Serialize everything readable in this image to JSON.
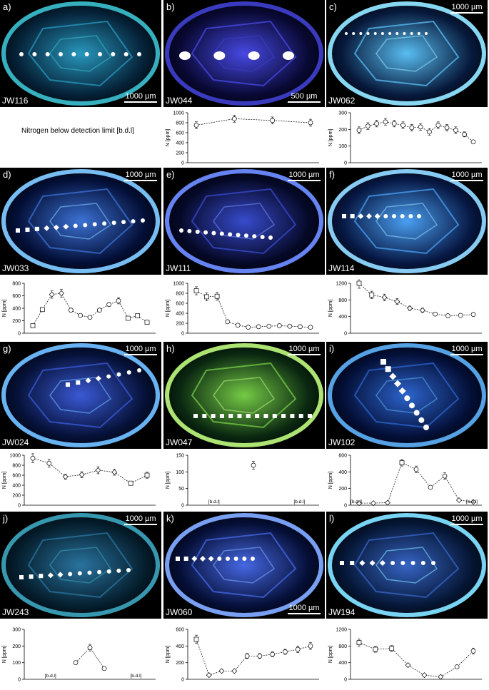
{
  "panels": [
    {
      "label": "a)",
      "sample": "JW116",
      "scale": "1000 µm",
      "bg": "#06233a",
      "glow": "#2aa0c8",
      "rim": "#39b9c9"
    },
    {
      "label": "b)",
      "sample": "JW044",
      "scale": "500 µm",
      "bg": "#0a0a38",
      "glow": "#4b4df0",
      "rim": "#3d3ec8"
    },
    {
      "label": "c)",
      "sample": "JW062",
      "scale": "1000 µm",
      "bg": "#081c40",
      "glow": "#5ec8ff",
      "rim": "#8fe3ff"
    },
    {
      "label": "d)",
      "sample": "JW033",
      "scale": "1000 µm",
      "bg": "#04103a",
      "glow": "#3f78e0",
      "rim": "#7ec8ff"
    },
    {
      "label": "e)",
      "sample": "JW111",
      "scale": "1000 µm",
      "bg": "#060a2a",
      "glow": "#3b4fd8",
      "rim": "#6c8bff"
    },
    {
      "label": "f)",
      "sample": "JW114",
      "scale": "1000 µm",
      "bg": "#081a48",
      "glow": "#4ea8ff",
      "rim": "#8fd6ff"
    },
    {
      "label": "g)",
      "sample": "JW024",
      "scale": "1000 µm",
      "bg": "#06123a",
      "glow": "#3d5ee0",
      "rim": "#6ebcff"
    },
    {
      "label": "h)",
      "sample": "JW047",
      "scale": "1000 µm",
      "bg": "#0b2a12",
      "glow": "#7cd64a",
      "rim": "#b6f07a"
    },
    {
      "label": "i)",
      "sample": "JW102",
      "scale": "1000 µm",
      "bg": "#04103a",
      "glow": "#2f6ad8",
      "rim": "#5aaaf0"
    },
    {
      "label": "j)",
      "sample": "JW243",
      "scale": "1000 µm",
      "bg": "#062030",
      "glow": "#2c7aa8",
      "rim": "#3aa0b8"
    },
    {
      "label": "k)",
      "sample": "JW060",
      "scale": "1000 µm",
      "bg": "#06103a",
      "glow": "#4a6ef0",
      "rim": "#7fa8ff"
    },
    {
      "label": "l)",
      "sample": "JW194",
      "scale": "1000 µm",
      "bg": "#061838",
      "glow": "#3a6ad0",
      "rim": "#7fe0ff"
    }
  ],
  "note_a": "Nitrogen below detection limit [b.d.l]",
  "chart_data": [
    {
      "panel": "b",
      "type": "scatter",
      "ylabel": "N [ppm]",
      "ylim": [
        0,
        1000
      ],
      "yticks": [
        0,
        200,
        400,
        600,
        800,
        1000
      ],
      "series": [
        {
          "marker": "circle",
          "values": [
            750,
            880,
            845,
            800
          ],
          "err": [
            70,
            70,
            70,
            70
          ]
        }
      ]
    },
    {
      "panel": "c",
      "type": "scatter",
      "ylabel": "N [ppm]",
      "ylim": [
        0,
        300
      ],
      "yticks": [
        0,
        100,
        200,
        300
      ],
      "series": [
        {
          "marker": "circle",
          "values": [
            195,
            220,
            235,
            245,
            235,
            225,
            210,
            215,
            185,
            225,
            210,
            195,
            170,
            125
          ],
          "err": [
            20,
            20,
            20,
            20,
            20,
            20,
            20,
            20,
            20,
            20,
            20,
            20,
            15,
            10
          ]
        }
      ]
    },
    {
      "panel": "d",
      "type": "scatter",
      "ylabel": "N [ppm]",
      "ylim": [
        0,
        800
      ],
      "yticks": [
        0,
        200,
        400,
        600,
        800
      ],
      "series": [
        {
          "marker": "mixed",
          "values": [
            120,
            380,
            620,
            640,
            370,
            285,
            255,
            370,
            460,
            520,
            240,
            280,
            175
          ],
          "markers": [
            "square",
            "square",
            "diamond",
            "diamond",
            "circle",
            "circle",
            "circle",
            "circle",
            "circle",
            "circle",
            "square",
            "square",
            "square"
          ],
          "err": [
            20,
            30,
            60,
            60,
            30,
            20,
            20,
            30,
            30,
            50,
            20,
            20,
            20
          ]
        }
      ]
    },
    {
      "panel": "e",
      "type": "scatter",
      "ylabel": "N [ppm]",
      "ylim": [
        0,
        1000
      ],
      "yticks": [
        0,
        200,
        400,
        600,
        800,
        1000
      ],
      "series": [
        {
          "marker": "mixed",
          "values": [
            850,
            730,
            740,
            230,
            160,
            120,
            130,
            140,
            150,
            140,
            130,
            120
          ],
          "markers": [
            "square",
            "square",
            "square",
            "circle",
            "circle",
            "circle",
            "circle",
            "circle",
            "circle",
            "circle",
            "circle",
            "circle"
          ],
          "err": [
            80,
            80,
            80,
            20,
            15,
            10,
            10,
            10,
            10,
            10,
            10,
            10
          ]
        }
      ]
    },
    {
      "panel": "f",
      "type": "scatter",
      "ylabel": "N [ppm]",
      "ylim": [
        0,
        1200
      ],
      "yticks": [
        0,
        400,
        800,
        1200
      ],
      "series": [
        {
          "marker": "mixed",
          "values": [
            1200,
            920,
            860,
            760,
            600,
            550,
            460,
            420,
            430,
            450
          ],
          "markers": [
            "square",
            "square",
            "diamond",
            "diamond",
            "diamond",
            "diamond",
            "circle",
            "circle",
            "circle",
            "circle"
          ],
          "err": [
            120,
            90,
            80,
            70,
            50,
            50,
            30,
            30,
            30,
            30
          ]
        }
      ]
    },
    {
      "panel": "g",
      "type": "scatter",
      "ylabel": "N [ppm]",
      "ylim": [
        0,
        1000
      ],
      "yticks": [
        0,
        200,
        400,
        600,
        800,
        1000
      ],
      "series": [
        {
          "marker": "mixed",
          "values": [
            940,
            840,
            570,
            610,
            700,
            660,
            440,
            600
          ],
          "markers": [
            "circle",
            "circle",
            "diamond",
            "diamond",
            "diamond",
            "diamond",
            "square",
            "square"
          ],
          "err": [
            90,
            80,
            50,
            60,
            70,
            60,
            40,
            60
          ]
        }
      ]
    },
    {
      "panel": "h",
      "type": "scatter",
      "ylabel": "N [ppm]",
      "ylim": [
        0,
        150
      ],
      "yticks": [
        0,
        50,
        100,
        150
      ],
      "series": [
        {
          "marker": "circle",
          "values": [
            120
          ],
          "x_idx": [
            4.5
          ],
          "err": [
            12
          ]
        }
      ],
      "annotations": [
        "[b.d.l]",
        "[b.d.l]"
      ]
    },
    {
      "panel": "i",
      "type": "scatter",
      "ylabel": "N [ppm]",
      "ylim": [
        0,
        600
      ],
      "yticks": [
        0,
        200,
        400,
        600
      ],
      "series": [
        {
          "marker": "mixed",
          "values": [
            25,
            25,
            30,
            510,
            430,
            215,
            350,
            60,
            40
          ],
          "markers": [
            "diamond",
            "diamond",
            "diamond",
            "square",
            "circle",
            "circle",
            "circle",
            "diamond",
            "diamond"
          ],
          "err": [
            5,
            5,
            5,
            40,
            40,
            20,
            40,
            10,
            5
          ]
        }
      ],
      "annotations": [
        "[b.d.l]",
        "[b.d.l]"
      ]
    },
    {
      "panel": "j",
      "type": "scatter",
      "ylabel": "N [ppm]",
      "ylim": [
        0,
        300
      ],
      "yticks": [
        0,
        100,
        200,
        300
      ],
      "series": [
        {
          "marker": "circle",
          "values": [
            100,
            190,
            65
          ],
          "err": [
            10,
            20,
            10
          ]
        }
      ],
      "annotations": [
        "[b.d.l]",
        "[b.d.l]"
      ]
    },
    {
      "panel": "k",
      "type": "scatter",
      "ylabel": "N [ppm]",
      "ylim": [
        0,
        600
      ],
      "yticks": [
        0,
        200,
        400,
        600
      ],
      "series": [
        {
          "marker": "mixed",
          "values": [
            480,
            50,
            100,
            100,
            280,
            280,
            300,
            330,
            360,
            400
          ],
          "markers": [
            "square",
            "diamond",
            "diamond",
            "diamond",
            "circle",
            "circle",
            "circle",
            "circle",
            "circle",
            "circle"
          ],
          "err": [
            50,
            5,
            10,
            10,
            30,
            30,
            30,
            30,
            40,
            40
          ]
        }
      ]
    },
    {
      "panel": "l",
      "type": "scatter",
      "ylabel": "N [ppm]",
      "ylim": [
        0,
        1200
      ],
      "yticks": [
        0,
        400,
        800,
        1200
      ],
      "series": [
        {
          "marker": "mixed",
          "values": [
            880,
            720,
            740,
            340,
            100,
            60,
            300,
            680
          ],
          "markers": [
            "square",
            "square",
            "square",
            "diamond",
            "diamond",
            "diamond",
            "circle",
            "circle"
          ],
          "err": [
            90,
            70,
            70,
            30,
            10,
            5,
            30,
            70
          ]
        }
      ]
    }
  ]
}
